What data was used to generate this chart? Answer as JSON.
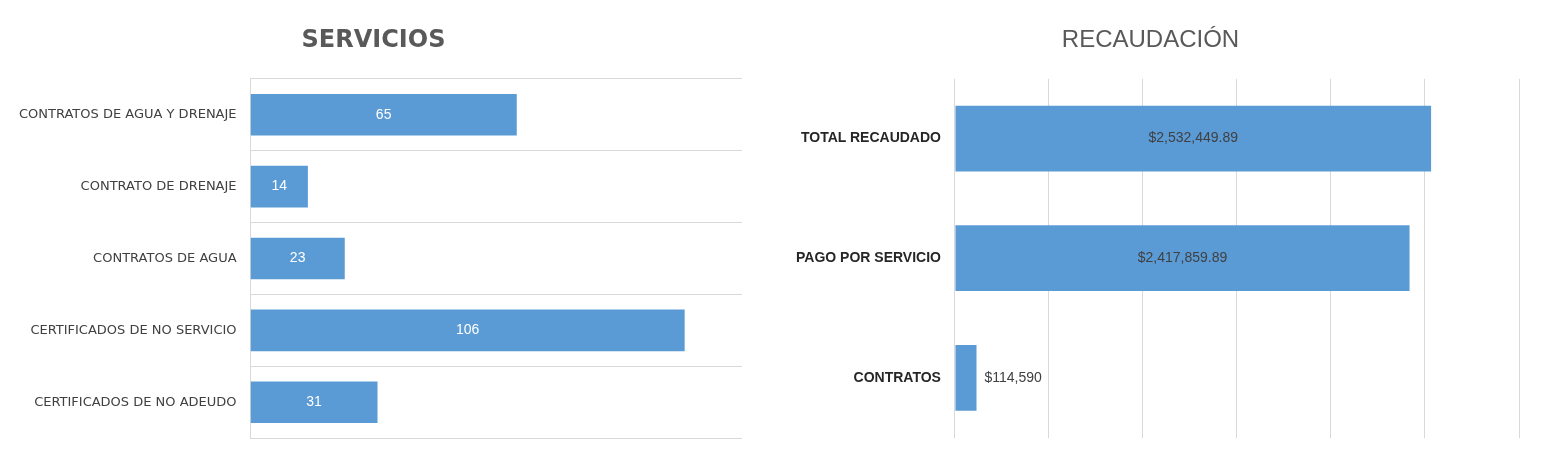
{
  "chart_data": [
    {
      "type": "bar",
      "orientation": "horizontal",
      "title": "SERVICIOS",
      "categories": [
        "CONTRATOS DE AGUA Y DRENAJE",
        "CONTRATO DE DRENAJE",
        "CONTRATOS DE AGUA",
        "CERTIFICADOS DE NO SERVICIO",
        "CERTIFICADOS DE NO ADEUDO"
      ],
      "values": [
        65,
        14,
        23,
        106,
        31
      ],
      "color": "#5b9bd5",
      "xlim": [
        0,
        120
      ],
      "data_labels": true,
      "grid": "y",
      "tick_labels": "y",
      "legend": false
    },
    {
      "type": "bar",
      "orientation": "horizontal",
      "title": "RECAUDACIÓN",
      "categories": [
        "TOTAL RECAUDADO",
        "PAGO POR SERVICIO",
        "CONTRATOS"
      ],
      "values": [
        2532449.89,
        2417859.89,
        114590
      ],
      "value_labels": [
        "$2,532,449.89",
        "$2,417,859.89",
        "$114,590"
      ],
      "color": "#5b9bd5",
      "xlim": [
        0,
        3000000
      ],
      "xticks": [
        {
          "value": 0,
          "label": null
        },
        {
          "value": 500000,
          "label": null
        },
        {
          "value": 1000000,
          "label": null
        },
        {
          "value": 1500000,
          "label": null
        },
        {
          "value": 2000000,
          "label": null
        },
        {
          "value": 2500000,
          "label": null
        },
        {
          "value": 3000000,
          "label": null
        }
      ],
      "grid": "x",
      "tick_labels": "y",
      "legend": false
    }
  ]
}
